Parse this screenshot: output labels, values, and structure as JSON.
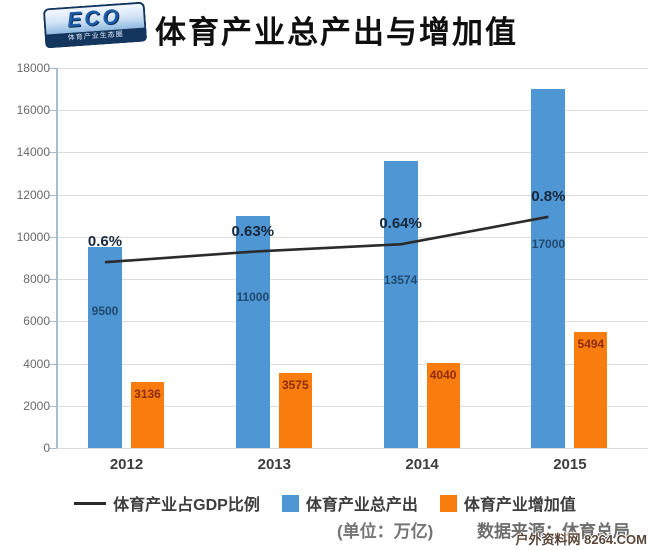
{
  "header": {
    "logo": {
      "text": "ECO",
      "subtext": "体育产业生态圈"
    }
  },
  "chart_data": {
    "type": "bar+line",
    "title": "体育产业总产出与增加值",
    "categories": [
      "2012",
      "2013",
      "2014",
      "2015"
    ],
    "series": [
      {
        "name": "体育产业总产出",
        "type": "bar",
        "color": "#4e96d4",
        "values": [
          9500,
          11000,
          13574,
          17000
        ],
        "label_color": "#204a6e"
      },
      {
        "name": "体育产业增加值",
        "type": "bar",
        "color": "#f97d0e",
        "values": [
          3136,
          3575,
          4040,
          5494
        ],
        "label_color": "#8f2c0d"
      },
      {
        "name": "体育产业占GDP比例",
        "type": "line",
        "color": "#2b2b2b",
        "values_percent": [
          "0.6%",
          "0.63%",
          "0.64%",
          "0.8%"
        ],
        "plotted_axis_values": [
          8800,
          9300,
          9650,
          10950
        ]
      }
    ],
    "ylim": [
      0,
      18000
    ],
    "ytick_interval": 2000,
    "grid": true,
    "legend_position": "bottom"
  },
  "footer": {
    "unit_note": "(单位：万亿)",
    "source_note": "数据来源：体育总局",
    "watermark": "户外资料网 8264.COM"
  }
}
